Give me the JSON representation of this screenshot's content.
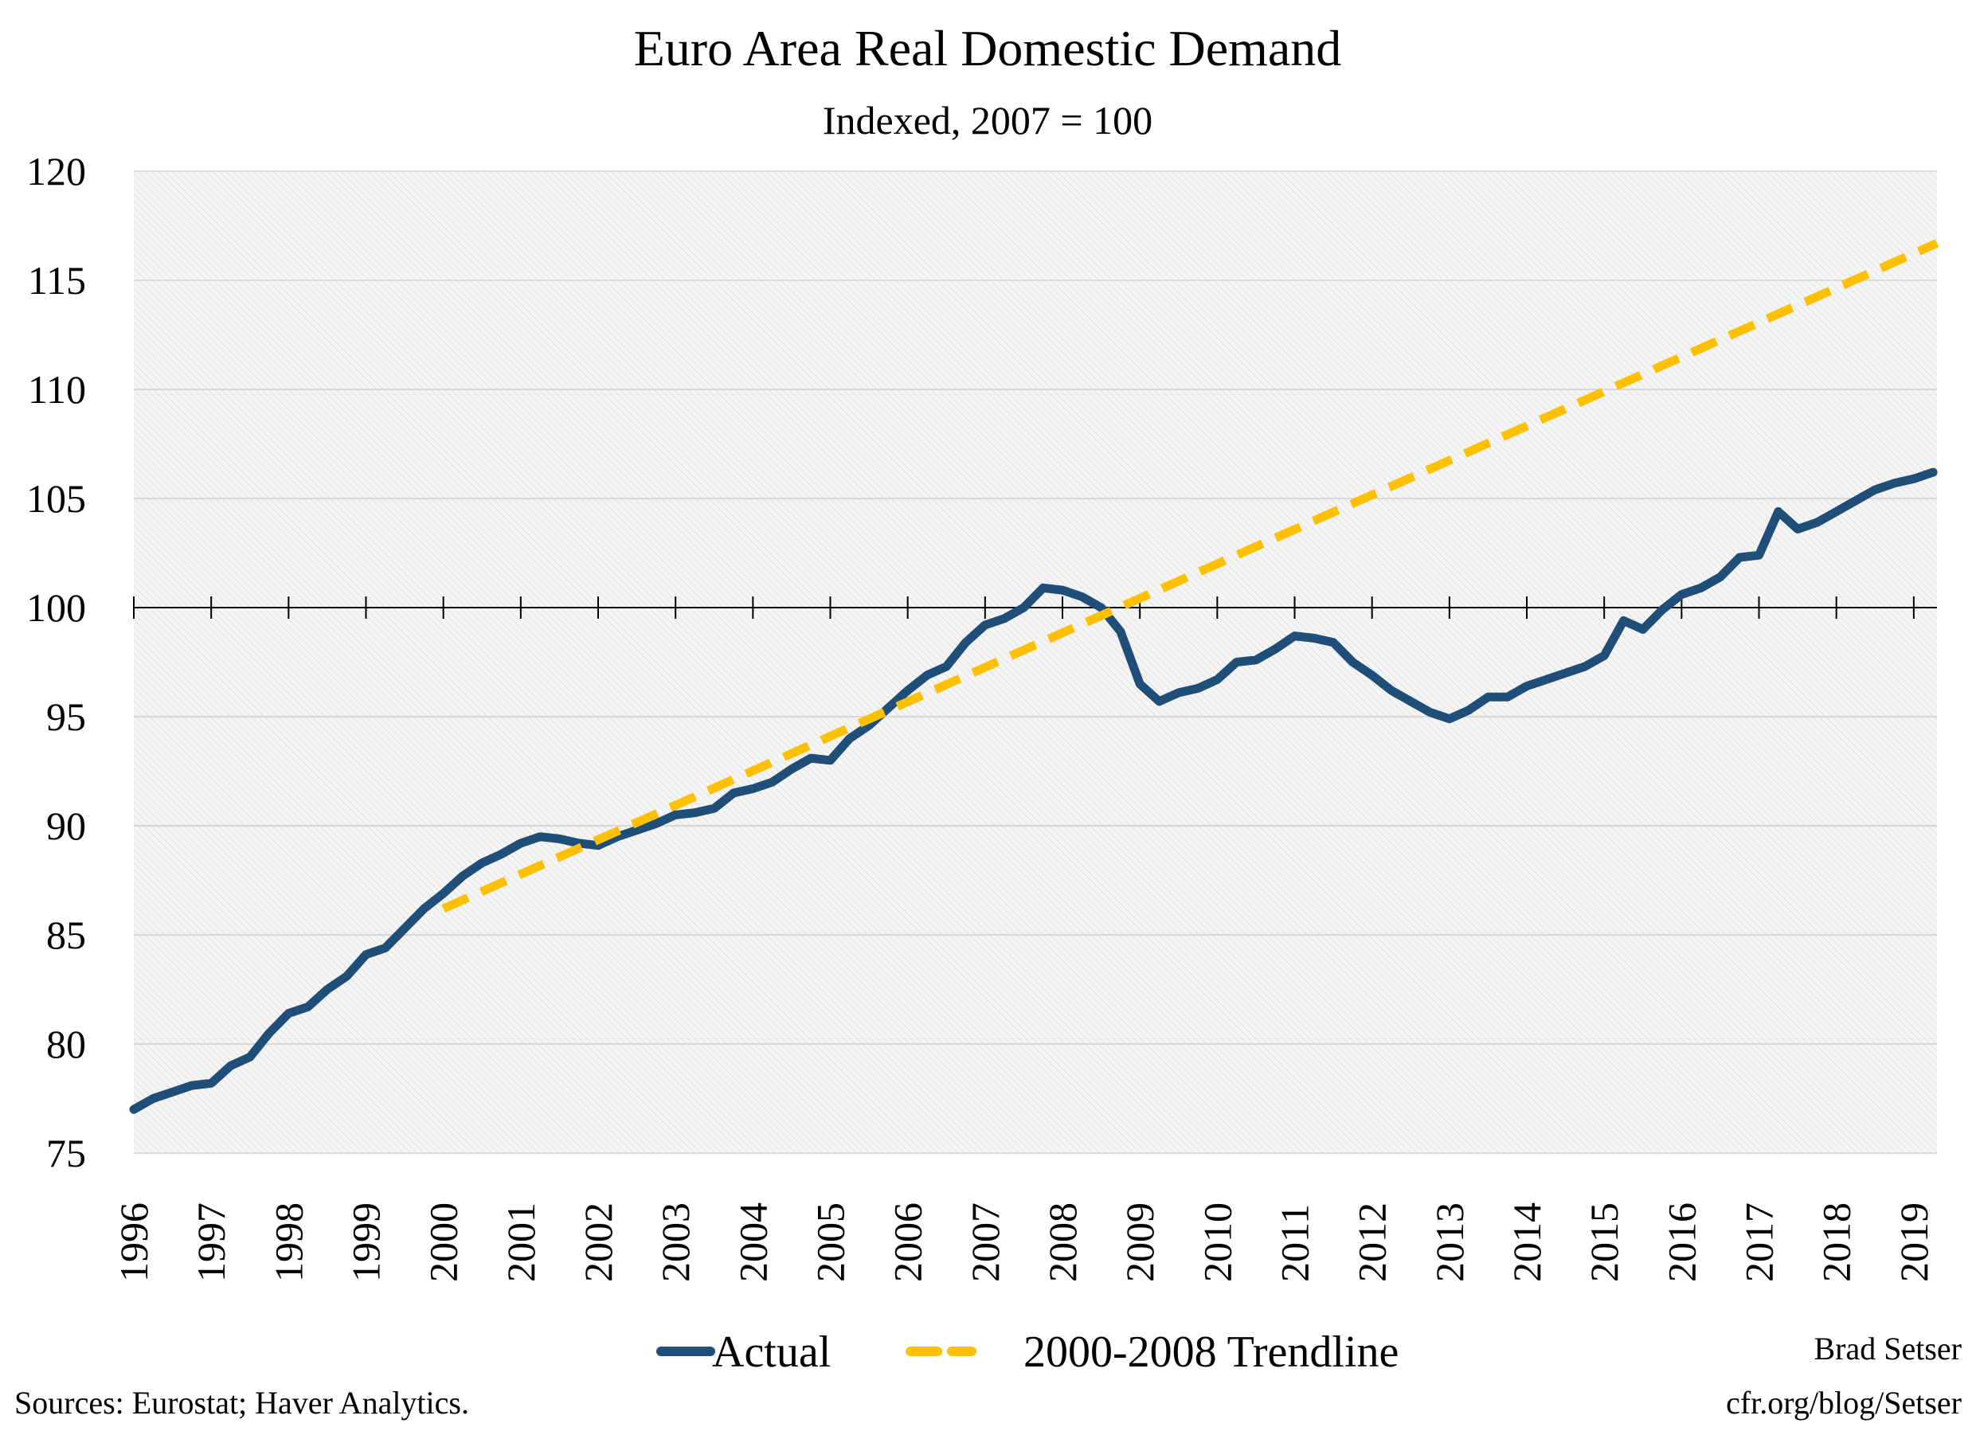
{
  "chart_data": {
    "type": "line",
    "title": "Euro Area Real Domestic Demand",
    "subtitle": "Indexed, 2007 = 100",
    "xlabel": "",
    "ylabel": "",
    "ylim": [
      75,
      120
    ],
    "yticks": [
      "75",
      "80",
      "85",
      "90",
      "95",
      "100",
      "105",
      "110",
      "115",
      "120"
    ],
    "xlim": [
      1996.0,
      2019.3
    ],
    "xticks": [
      "1996",
      "1997",
      "1998",
      "1999",
      "2000",
      "2001",
      "2002",
      "2003",
      "2004",
      "2005",
      "2006",
      "2007",
      "2008",
      "2009",
      "2010",
      "2011",
      "2012",
      "2013",
      "2014",
      "2015",
      "2016",
      "2017",
      "2018",
      "2019"
    ],
    "grid": true,
    "reference_line": 100,
    "legend_position": "bottom",
    "series": [
      {
        "name": "Actual",
        "color": "#1f4e79",
        "style": "solid",
        "x": [
          1996.0,
          1996.25,
          1996.5,
          1996.75,
          1997.0,
          1997.25,
          1997.5,
          1997.75,
          1998.0,
          1998.25,
          1998.5,
          1998.75,
          1999.0,
          1999.25,
          1999.5,
          1999.75,
          2000.0,
          2000.25,
          2000.5,
          2000.75,
          2001.0,
          2001.25,
          2001.5,
          2001.75,
          2002.0,
          2002.25,
          2002.5,
          2002.75,
          2003.0,
          2003.25,
          2003.5,
          2003.75,
          2004.0,
          2004.25,
          2004.5,
          2004.75,
          2005.0,
          2005.25,
          2005.5,
          2005.75,
          2006.0,
          2006.25,
          2006.5,
          2006.75,
          2007.0,
          2007.25,
          2007.5,
          2007.75,
          2008.0,
          2008.25,
          2008.5,
          2008.75,
          2009.0,
          2009.25,
          2009.5,
          2009.75,
          2010.0,
          2010.25,
          2010.5,
          2010.75,
          2011.0,
          2011.25,
          2011.5,
          2011.75,
          2012.0,
          2012.25,
          2012.5,
          2012.75,
          2013.0,
          2013.25,
          2013.5,
          2013.75,
          2014.0,
          2014.25,
          2014.5,
          2014.75,
          2015.0,
          2015.25,
          2015.5,
          2015.75,
          2016.0,
          2016.25,
          2016.5,
          2016.75,
          2017.0,
          2017.25,
          2017.5,
          2017.75,
          2018.0,
          2018.25,
          2018.5,
          2018.75,
          2019.0,
          2019.25
        ],
        "values": [
          77.0,
          77.5,
          77.8,
          78.1,
          78.2,
          79.0,
          79.4,
          80.5,
          81.4,
          81.7,
          82.5,
          83.1,
          84.1,
          84.4,
          85.3,
          86.2,
          86.9,
          87.7,
          88.3,
          88.7,
          89.2,
          89.5,
          89.4,
          89.2,
          89.1,
          89.5,
          89.8,
          90.1,
          90.5,
          90.6,
          90.8,
          91.5,
          91.7,
          92.0,
          92.6,
          93.1,
          93.0,
          94.0,
          94.6,
          95.4,
          96.2,
          96.9,
          97.3,
          98.4,
          99.2,
          99.5,
          100.0,
          100.9,
          100.8,
          100.5,
          100.0,
          98.9,
          96.5,
          95.7,
          96.1,
          96.3,
          96.7,
          97.5,
          97.6,
          98.1,
          98.7,
          98.6,
          98.4,
          97.5,
          96.9,
          96.2,
          95.7,
          95.2,
          94.9,
          95.3,
          95.9,
          95.9,
          96.4,
          96.7,
          97.0,
          97.3,
          97.8,
          99.4,
          99.0,
          99.9,
          100.6,
          100.9,
          101.4,
          102.3,
          102.4,
          104.4,
          103.6,
          103.9,
          104.4,
          104.9,
          105.4,
          105.7,
          105.9,
          106.2
        ]
      },
      {
        "name": "2000-2008 Trendline",
        "color": "#ffc000",
        "style": "dashed",
        "x": [
          2000.0,
          2019.3
        ],
        "values": [
          86.2,
          116.7
        ]
      }
    ]
  },
  "footer": {
    "author": "Brad Setser",
    "url": "cfr.org/blog/Setser",
    "sources": "Sources: Eurostat; Haver Analytics."
  }
}
